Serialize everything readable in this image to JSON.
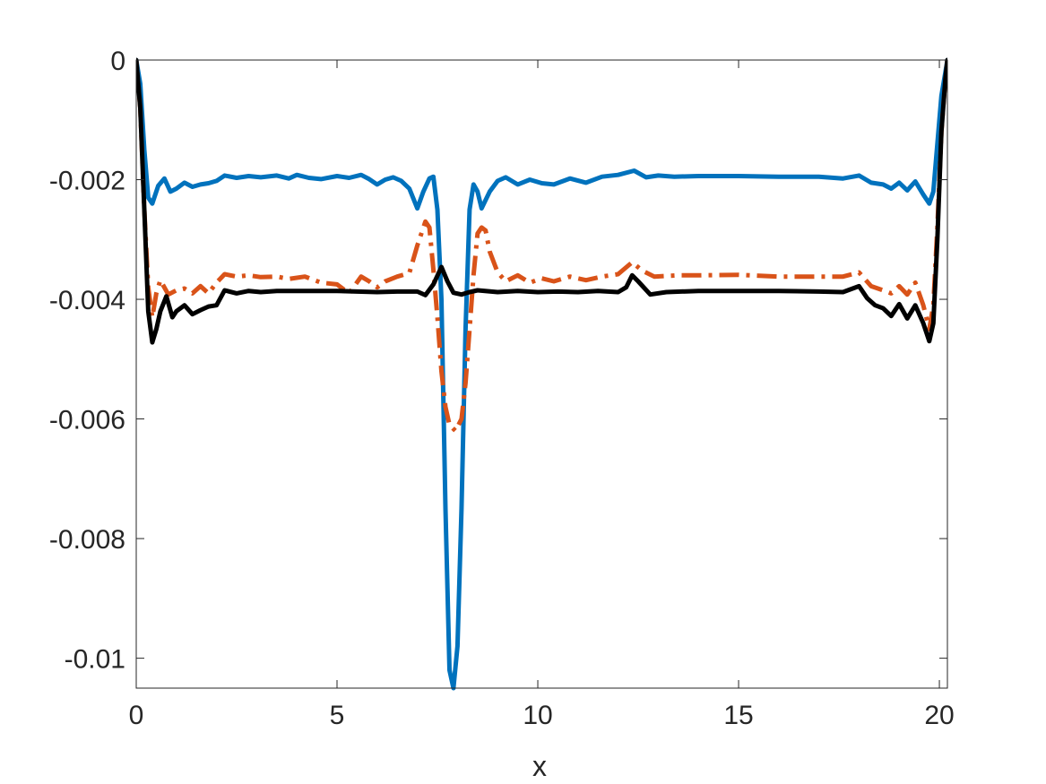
{
  "chart_data": {
    "type": "line",
    "xlabel": "x",
    "ylabel": "",
    "xlim": [
      0,
      20.2
    ],
    "ylim": [
      -0.0105,
      0
    ],
    "xticks": [
      0,
      5,
      10,
      15,
      20
    ],
    "xtick_labels": [
      "0",
      "5",
      "10",
      "15",
      "20"
    ],
    "yticks": [
      0,
      -0.002,
      -0.004,
      -0.006,
      -0.008,
      -0.01
    ],
    "ytick_labels": [
      "0",
      "-0.002",
      "-0.004",
      "-0.006",
      "-0.008",
      "-0.01"
    ],
    "grid": false,
    "legend": "none",
    "series": [
      {
        "color": "#0072BD",
        "style": "solid",
        "points": [
          [
            0,
            0
          ],
          [
            0.1,
            -0.0004
          ],
          [
            0.2,
            -0.0015
          ],
          [
            0.3,
            -0.0023
          ],
          [
            0.4,
            -0.0024
          ],
          [
            0.55,
            -0.0021
          ],
          [
            0.7,
            -0.00198
          ],
          [
            0.85,
            -0.0022
          ],
          [
            1.0,
            -0.00215
          ],
          [
            1.2,
            -0.00205
          ],
          [
            1.4,
            -0.00212
          ],
          [
            1.6,
            -0.00208
          ],
          [
            1.8,
            -0.00206
          ],
          [
            2.0,
            -0.00202
          ],
          [
            2.2,
            -0.00193
          ],
          [
            2.5,
            -0.00197
          ],
          [
            2.8,
            -0.00194
          ],
          [
            3.1,
            -0.00196
          ],
          [
            3.5,
            -0.00193
          ],
          [
            3.8,
            -0.00198
          ],
          [
            4.0,
            -0.00192
          ],
          [
            4.3,
            -0.00197
          ],
          [
            4.6,
            -0.00199
          ],
          [
            5.0,
            -0.00194
          ],
          [
            5.3,
            -0.00197
          ],
          [
            5.6,
            -0.00192
          ],
          [
            5.8,
            -0.00199
          ],
          [
            6.0,
            -0.00208
          ],
          [
            6.2,
            -0.002
          ],
          [
            6.4,
            -0.00196
          ],
          [
            6.6,
            -0.00202
          ],
          [
            6.8,
            -0.00215
          ],
          [
            7.0,
            -0.00248
          ],
          [
            7.15,
            -0.0022
          ],
          [
            7.3,
            -0.00198
          ],
          [
            7.4,
            -0.00195
          ],
          [
            7.5,
            -0.0025
          ],
          [
            7.6,
            -0.004
          ],
          [
            7.7,
            -0.0075
          ],
          [
            7.8,
            -0.0102
          ],
          [
            7.9,
            -0.0105
          ],
          [
            8.0,
            -0.0098
          ],
          [
            8.1,
            -0.0075
          ],
          [
            8.2,
            -0.0045
          ],
          [
            8.3,
            -0.0025
          ],
          [
            8.4,
            -0.00208
          ],
          [
            8.5,
            -0.0022
          ],
          [
            8.6,
            -0.00248
          ],
          [
            8.8,
            -0.0022
          ],
          [
            9.0,
            -0.00202
          ],
          [
            9.2,
            -0.00196
          ],
          [
            9.5,
            -0.00208
          ],
          [
            9.8,
            -0.002
          ],
          [
            10.1,
            -0.00206
          ],
          [
            10.4,
            -0.00208
          ],
          [
            10.8,
            -0.00198
          ],
          [
            11.2,
            -0.00205
          ],
          [
            11.6,
            -0.00195
          ],
          [
            12.0,
            -0.00192
          ],
          [
            12.4,
            -0.00185
          ],
          [
            12.7,
            -0.00196
          ],
          [
            13.0,
            -0.00193
          ],
          [
            13.4,
            -0.00195
          ],
          [
            14.0,
            -0.00194
          ],
          [
            15.0,
            -0.00194
          ],
          [
            16.0,
            -0.00195
          ],
          [
            17.0,
            -0.00195
          ],
          [
            17.6,
            -0.00198
          ],
          [
            18.0,
            -0.00193
          ],
          [
            18.3,
            -0.00205
          ],
          [
            18.6,
            -0.00208
          ],
          [
            18.8,
            -0.00215
          ],
          [
            19.0,
            -0.00205
          ],
          [
            19.2,
            -0.00218
          ],
          [
            19.4,
            -0.00203
          ],
          [
            19.6,
            -0.00225
          ],
          [
            19.75,
            -0.0024
          ],
          [
            19.85,
            -0.0022
          ],
          [
            19.95,
            -0.0014
          ],
          [
            20.05,
            -0.0006
          ],
          [
            20.15,
            -0.0002
          ],
          [
            20.2,
            0
          ]
        ]
      },
      {
        "color": "#D95319",
        "style": "dashdot",
        "points": [
          [
            0,
            0
          ],
          [
            0.1,
            -0.0008
          ],
          [
            0.2,
            -0.0025
          ],
          [
            0.3,
            -0.0038
          ],
          [
            0.4,
            -0.0043
          ],
          [
            0.5,
            -0.0039
          ],
          [
            0.6,
            -0.00368
          ],
          [
            0.8,
            -0.00392
          ],
          [
            1.0,
            -0.00385
          ],
          [
            1.2,
            -0.00382
          ],
          [
            1.4,
            -0.0039
          ],
          [
            1.6,
            -0.00378
          ],
          [
            1.8,
            -0.0039
          ],
          [
            2.0,
            -0.00372
          ],
          [
            2.2,
            -0.00358
          ],
          [
            2.5,
            -0.00362
          ],
          [
            2.8,
            -0.0036
          ],
          [
            3.1,
            -0.00363
          ],
          [
            3.5,
            -0.00362
          ],
          [
            3.8,
            -0.00366
          ],
          [
            4.2,
            -0.00362
          ],
          [
            4.6,
            -0.00372
          ],
          [
            5.0,
            -0.00375
          ],
          [
            5.3,
            -0.0039
          ],
          [
            5.6,
            -0.00362
          ],
          [
            5.8,
            -0.0037
          ],
          [
            6.0,
            -0.0038
          ],
          [
            6.2,
            -0.0037
          ],
          [
            6.5,
            -0.00362
          ],
          [
            6.8,
            -0.00356
          ],
          [
            7.0,
            -0.0031
          ],
          [
            7.2,
            -0.0027
          ],
          [
            7.3,
            -0.0028
          ],
          [
            7.4,
            -0.0035
          ],
          [
            7.5,
            -0.0043
          ],
          [
            7.6,
            -0.0052
          ],
          [
            7.7,
            -0.0058
          ],
          [
            7.8,
            -0.0061
          ],
          [
            7.95,
            -0.0062
          ],
          [
            8.1,
            -0.006
          ],
          [
            8.2,
            -0.0054
          ],
          [
            8.3,
            -0.0045
          ],
          [
            8.4,
            -0.0036
          ],
          [
            8.5,
            -0.0029
          ],
          [
            8.6,
            -0.0028
          ],
          [
            8.7,
            -0.00285
          ],
          [
            8.8,
            -0.0032
          ],
          [
            9.0,
            -0.00355
          ],
          [
            9.2,
            -0.0037
          ],
          [
            9.5,
            -0.0036
          ],
          [
            9.8,
            -0.00372
          ],
          [
            10.1,
            -0.00365
          ],
          [
            10.4,
            -0.0037
          ],
          [
            10.8,
            -0.00362
          ],
          [
            11.2,
            -0.00368
          ],
          [
            11.6,
            -0.00362
          ],
          [
            12.0,
            -0.00358
          ],
          [
            12.35,
            -0.00338
          ],
          [
            12.6,
            -0.00352
          ],
          [
            12.9,
            -0.00362
          ],
          [
            13.5,
            -0.0036
          ],
          [
            14.0,
            -0.0036
          ],
          [
            15.0,
            -0.00359
          ],
          [
            16.0,
            -0.00362
          ],
          [
            17.0,
            -0.00362
          ],
          [
            17.6,
            -0.00362
          ],
          [
            18.0,
            -0.00355
          ],
          [
            18.3,
            -0.00378
          ],
          [
            18.6,
            -0.00385
          ],
          [
            18.8,
            -0.0039
          ],
          [
            19.0,
            -0.00378
          ],
          [
            19.2,
            -0.00392
          ],
          [
            19.4,
            -0.00372
          ],
          [
            19.6,
            -0.0041
          ],
          [
            19.75,
            -0.0045
          ],
          [
            19.85,
            -0.0041
          ],
          [
            19.95,
            -0.0028
          ],
          [
            20.05,
            -0.0012
          ],
          [
            20.15,
            -0.0003
          ],
          [
            20.2,
            0
          ]
        ]
      },
      {
        "color": "#000000",
        "style": "solid",
        "points": [
          [
            0,
            0
          ],
          [
            0.1,
            -0.0008
          ],
          [
            0.2,
            -0.0025
          ],
          [
            0.3,
            -0.0042
          ],
          [
            0.4,
            -0.00472
          ],
          [
            0.5,
            -0.0045
          ],
          [
            0.6,
            -0.0042
          ],
          [
            0.75,
            -0.00395
          ],
          [
            0.9,
            -0.0043
          ],
          [
            1.0,
            -0.0042
          ],
          [
            1.2,
            -0.0041
          ],
          [
            1.4,
            -0.00425
          ],
          [
            1.6,
            -0.00418
          ],
          [
            1.8,
            -0.00412
          ],
          [
            2.0,
            -0.0041
          ],
          [
            2.2,
            -0.00385
          ],
          [
            2.5,
            -0.0039
          ],
          [
            2.8,
            -0.00386
          ],
          [
            3.1,
            -0.00388
          ],
          [
            3.5,
            -0.00386
          ],
          [
            4.0,
            -0.00386
          ],
          [
            4.5,
            -0.00386
          ],
          [
            5.0,
            -0.00386
          ],
          [
            5.5,
            -0.00387
          ],
          [
            6.0,
            -0.00388
          ],
          [
            6.5,
            -0.00387
          ],
          [
            7.0,
            -0.00387
          ],
          [
            7.2,
            -0.00393
          ],
          [
            7.4,
            -0.00375
          ],
          [
            7.6,
            -0.00346
          ],
          [
            7.75,
            -0.0037
          ],
          [
            7.9,
            -0.00389
          ],
          [
            8.1,
            -0.00392
          ],
          [
            8.3,
            -0.00388
          ],
          [
            8.5,
            -0.00385
          ],
          [
            9.0,
            -0.00388
          ],
          [
            9.5,
            -0.00386
          ],
          [
            10.0,
            -0.00388
          ],
          [
            10.5,
            -0.00387
          ],
          [
            11.0,
            -0.00388
          ],
          [
            11.5,
            -0.00386
          ],
          [
            12.0,
            -0.00388
          ],
          [
            12.2,
            -0.0038
          ],
          [
            12.35,
            -0.0036
          ],
          [
            12.5,
            -0.0037
          ],
          [
            12.8,
            -0.00392
          ],
          [
            13.2,
            -0.00388
          ],
          [
            14.0,
            -0.00386
          ],
          [
            15.0,
            -0.00386
          ],
          [
            16.0,
            -0.00386
          ],
          [
            17.0,
            -0.00387
          ],
          [
            17.6,
            -0.00388
          ],
          [
            18.0,
            -0.00378
          ],
          [
            18.2,
            -0.00398
          ],
          [
            18.4,
            -0.0041
          ],
          [
            18.6,
            -0.00415
          ],
          [
            18.8,
            -0.00428
          ],
          [
            19.0,
            -0.00408
          ],
          [
            19.2,
            -0.00432
          ],
          [
            19.4,
            -0.0041
          ],
          [
            19.6,
            -0.0044
          ],
          [
            19.75,
            -0.0047
          ],
          [
            19.85,
            -0.0044
          ],
          [
            19.95,
            -0.003
          ],
          [
            20.05,
            -0.0012
          ],
          [
            20.15,
            -0.0003
          ],
          [
            20.2,
            0
          ]
        ]
      }
    ]
  }
}
